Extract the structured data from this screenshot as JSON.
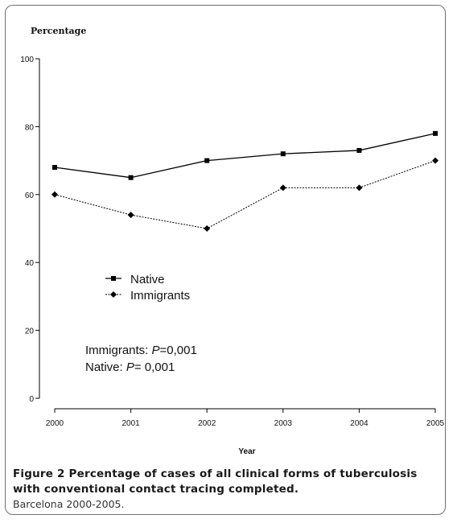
{
  "chart_data": {
    "type": "line",
    "ylabel": "Percentage",
    "xlabel": "Year",
    "x": [
      "2000",
      "2001",
      "2002",
      "2003",
      "2004",
      "2005"
    ],
    "ylim": [
      0,
      100
    ],
    "yticks": [
      0,
      20,
      40,
      60,
      80,
      100
    ],
    "grid": false,
    "legend_position": "middle-left",
    "series": [
      {
        "name": "Native",
        "style": "solid",
        "marker": "square",
        "values": [
          68,
          65,
          70,
          72,
          73,
          78
        ]
      },
      {
        "name": "Immigrants",
        "style": "dotted",
        "marker": "diamond",
        "values": [
          60,
          54,
          50,
          62,
          62,
          70
        ]
      }
    ],
    "annotations": [
      {
        "label": "Immigrants: ",
        "p_symbol": "P",
        "value": "=0,001"
      },
      {
        "label": "Native: ",
        "p_symbol": "P",
        "value": "= 0,001"
      }
    ]
  },
  "caption": {
    "title": "Figure 2 Percentage of cases of all clinical forms of tuberculosis with conventional contact tracing completed.",
    "subtitle": "Barcelona 2000-2005."
  }
}
